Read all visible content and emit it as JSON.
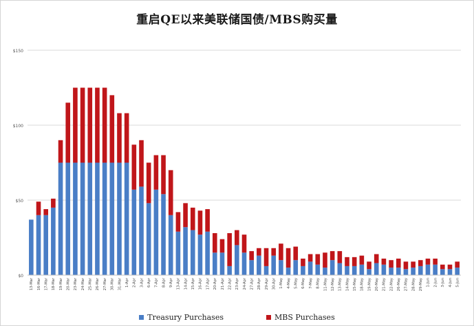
{
  "chart_data": {
    "type": "bar",
    "stacked": true,
    "title": "重启QE以来美联储国债/MBS购买量",
    "xlabel": "",
    "ylabel": "",
    "ylim": [
      0,
      150
    ],
    "yticks": [
      0,
      50,
      100,
      150
    ],
    "ytick_labels": [
      "$0",
      "$50",
      "$100",
      "$150"
    ],
    "grid": "horizontal",
    "legend": "bottom",
    "categories": [
      "13-Mar",
      "16-Mar",
      "17-Mar",
      "18-Mar",
      "19-Mar",
      "20-Mar",
      "23-Mar",
      "24-Mar",
      "25-Mar",
      "26-Mar",
      "27-Mar",
      "30-Mar",
      "31-Mar",
      "1-Apr",
      "2-Apr",
      "3-Apr",
      "6-Apr",
      "7-Apr",
      "8-Apr",
      "9-Apr",
      "13-Apr",
      "14-Apr",
      "15-Apr",
      "16-Apr",
      "17-Apr",
      "20-Apr",
      "21-Apr",
      "22-Apr",
      "23-Apr",
      "24-Apr",
      "27-Apr",
      "28-Apr",
      "29-Apr",
      "30-Apr",
      "1-May",
      "4-May",
      "5-May",
      "6-May",
      "7-May",
      "8-May",
      "11-May",
      "12-May",
      "13-May",
      "14-May",
      "15-May",
      "18-May",
      "19-May",
      "20-May",
      "21-May",
      "22-May",
      "26-May",
      "27-May",
      "28-May",
      "29-May",
      "1-Jun",
      "2-Jun",
      "3-Jun",
      "4-Jun",
      "5-Jun"
    ],
    "series": [
      {
        "name": "Treasury Purchases",
        "color": "#4a7ec6",
        "values": [
          37,
          40,
          40,
          45,
          75,
          75,
          75,
          75,
          75,
          75,
          75,
          75,
          75,
          75,
          57,
          59,
          48,
          57,
          54,
          40,
          29,
          32,
          30,
          27,
          29,
          15,
          15,
          6,
          20,
          15,
          10,
          13,
          6,
          13,
          10,
          5,
          10,
          6,
          9,
          7,
          5,
          10,
          8,
          6,
          6,
          7,
          4,
          8,
          7,
          5,
          5,
          4,
          5,
          6,
          7,
          7,
          4,
          4,
          5
        ]
      },
      {
        "name": "MBS Purchases",
        "color": "#c0161a",
        "values": [
          0,
          9,
          4,
          6,
          15,
          40,
          50,
          50,
          50,
          50,
          50,
          45,
          33,
          33,
          30,
          31,
          27,
          23,
          26,
          30,
          13,
          16,
          15,
          16,
          15,
          13,
          9,
          22,
          10,
          12,
          6,
          5,
          12,
          5,
          11,
          13,
          9,
          5,
          5,
          7,
          10,
          6,
          8,
          6,
          6,
          6,
          5,
          6,
          4,
          5,
          6,
          5,
          4,
          4,
          4,
          4,
          3,
          3,
          4
        ]
      }
    ]
  }
}
